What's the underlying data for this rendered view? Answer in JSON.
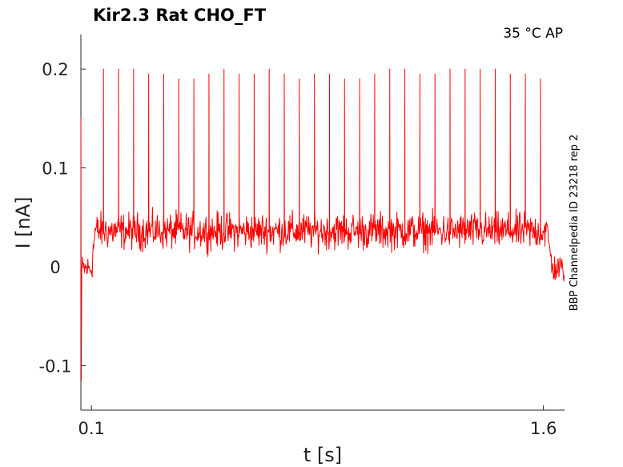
{
  "chart_data": {
    "type": "line",
    "title": "Kir2.3  Rat  CHO_FT",
    "annotation": "35 °C  AP",
    "side_label": "BBP Channelpedia ID 23218 rep 2",
    "xlabel": "t [s]",
    "ylabel": "I [nA]",
    "xlim": [
      0.065,
      1.67
    ],
    "ylim": [
      -0.145,
      0.235
    ],
    "x_ticks": [
      0.1,
      1.6
    ],
    "x_tick_labels": [
      "0.1",
      "1.6"
    ],
    "y_ticks": [
      -0.1,
      0,
      0.1,
      0.2
    ],
    "y_tick_labels": [
      "-0.1",
      "0",
      "0.1",
      "0.2"
    ],
    "grid": false,
    "legend": "none",
    "series": [
      {
        "color": "#ff0000",
        "baseline_nA": -0.002,
        "plateau_nA": 0.036,
        "step_on_s": 0.1,
        "step_off_s": 1.6,
        "initial_transient_nA": [
          0.15,
          -0.115
        ],
        "spike_times_s": [
          0.14,
          0.19,
          0.24,
          0.29,
          0.34,
          0.39,
          0.44,
          0.49,
          0.54,
          0.59,
          0.64,
          0.69,
          0.74,
          0.79,
          0.84,
          0.89,
          0.94,
          0.99,
          1.04,
          1.09,
          1.14,
          1.19,
          1.24,
          1.29,
          1.34,
          1.39,
          1.44,
          1.49,
          1.54,
          1.59
        ],
        "spike_peaks_nA": [
          0.2,
          0.2,
          0.2,
          0.195,
          0.195,
          0.19,
          0.19,
          0.195,
          0.2,
          0.195,
          0.195,
          0.2,
          0.195,
          0.19,
          0.195,
          0.195,
          0.19,
          0.19,
          0.195,
          0.2,
          0.2,
          0.195,
          0.195,
          0.2,
          0.2,
          0.2,
          0.2,
          0.195,
          0.195,
          0.19
        ]
      }
    ]
  }
}
